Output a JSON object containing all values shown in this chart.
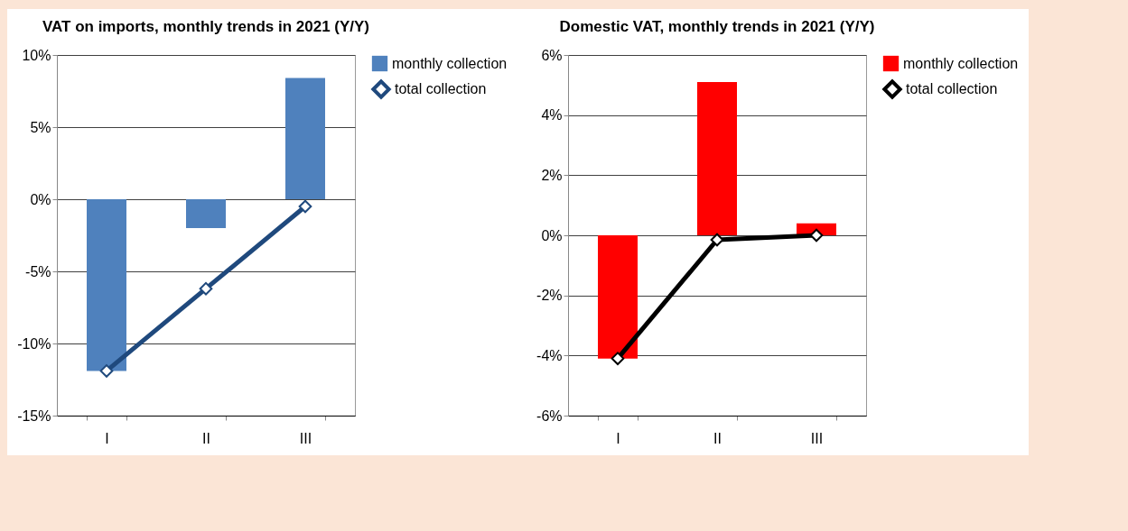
{
  "chart_data": [
    {
      "type": "bar",
      "title": "VAT on imports, monthly trends in 2021 (Y/Y)",
      "categories": [
        "I",
        "II",
        "III"
      ],
      "series": [
        {
          "name": "monthly collection",
          "color": "#4f81bd",
          "values": [
            -11.9,
            -2.0,
            8.4
          ]
        },
        {
          "name": "total collection",
          "type": "line",
          "color": "#1f497d",
          "marker": "diamond",
          "values": [
            -11.9,
            -6.2,
            -0.5
          ]
        }
      ],
      "ylim": [
        -15,
        10
      ],
      "yticks": [
        {
          "value": -15,
          "label": "-15%"
        },
        {
          "value": -10,
          "label": "-10%"
        },
        {
          "value": -5,
          "label": "-5%"
        },
        {
          "value": 0,
          "label": "0%"
        },
        {
          "value": 5,
          "label": "5%"
        },
        {
          "value": 10,
          "label": "10%"
        }
      ],
      "grid": "y",
      "legend": "right"
    },
    {
      "type": "bar",
      "title": "Domestic VAT, monthly trends in 2021 (Y/Y)",
      "categories": [
        "I",
        "II",
        "III"
      ],
      "series": [
        {
          "name": "monthly collection",
          "color": "#ff0000",
          "values": [
            -4.1,
            5.1,
            0.4
          ]
        },
        {
          "name": "total collection",
          "type": "line",
          "color": "#000000",
          "marker": "diamond",
          "values": [
            -4.1,
            -0.15,
            0.0
          ]
        }
      ],
      "ylim": [
        -6,
        6
      ],
      "yticks": [
        {
          "value": -6,
          "label": "-6%"
        },
        {
          "value": -4,
          "label": "-4%"
        },
        {
          "value": -2,
          "label": "-2%"
        },
        {
          "value": 0,
          "label": "0%"
        },
        {
          "value": 2,
          "label": "2%"
        },
        {
          "value": 4,
          "label": "4%"
        },
        {
          "value": 6,
          "label": "6%"
        }
      ],
      "grid": "y",
      "legend": "right"
    }
  ]
}
